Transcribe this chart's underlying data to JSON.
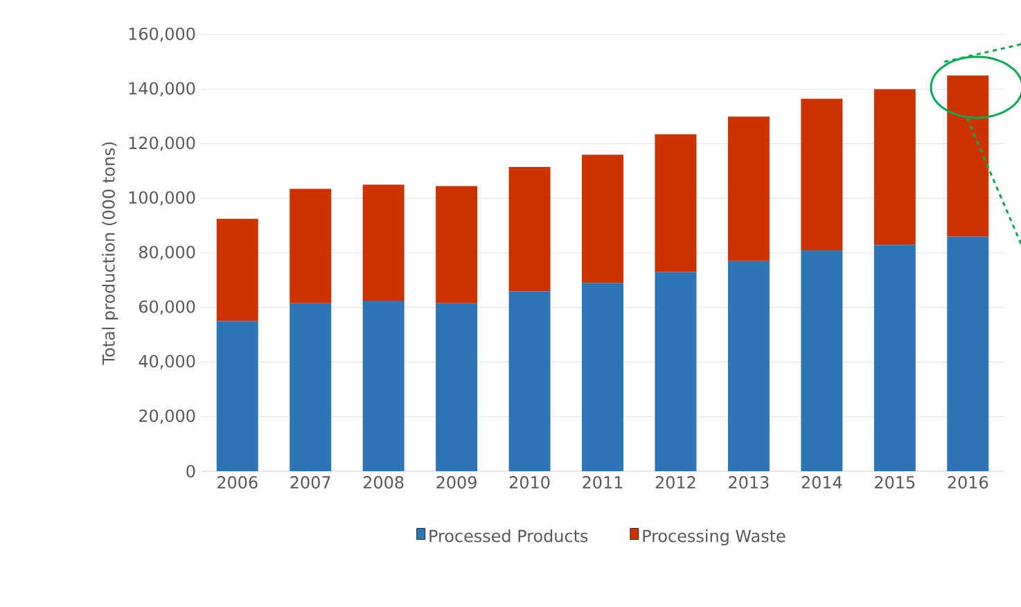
{
  "chart_data": {
    "type": "bar",
    "stacked": true,
    "ylabel": "Total production (000 tons)",
    "categories": [
      "2006",
      "2007",
      "2008",
      "2009",
      "2010",
      "2011",
      "2012",
      "2013",
      "2014",
      "2015",
      "2016"
    ],
    "series": [
      {
        "name": "Processed Products",
        "color": "#2e75b6",
        "values": [
          55000,
          61500,
          62500,
          61500,
          66000,
          69000,
          73000,
          77000,
          81000,
          83000,
          86000
        ]
      },
      {
        "name": "Processing Waste",
        "color": "#cc3300",
        "values": [
          37500,
          42000,
          42500,
          43000,
          45500,
          47000,
          50500,
          53000,
          55500,
          57000,
          59000
        ]
      }
    ],
    "ylim": [
      0,
      160000
    ],
    "yticks": [
      0,
      {
        "value": 20000,
        "label": "20,000"
      },
      {
        "value": 40000,
        "label": "40,000"
      },
      {
        "value": 60000,
        "label": "60,000"
      },
      {
        "value": 80000,
        "label": "80,000"
      },
      {
        "value": 100000,
        "label": "100,000"
      },
      {
        "value": 120000,
        "label": "120,000"
      },
      {
        "value": 140000,
        "label": "140,000"
      },
      {
        "value": 160000,
        "label": "160,000"
      }
    ],
    "grid": "y",
    "legend": "bottom"
  }
}
